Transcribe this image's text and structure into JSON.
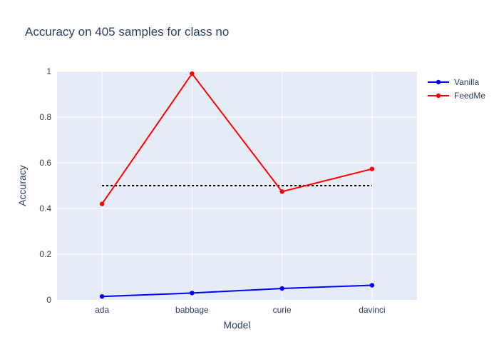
{
  "chart_data": {
    "type": "line",
    "title": "Accuracy on 405 samples for class  no",
    "xlabel": "Model",
    "ylabel": "Accuracy",
    "categories": [
      "ada",
      "babbage",
      "curie",
      "davinci"
    ],
    "ylim": [
      0,
      1
    ],
    "yticks": [
      0,
      0.2,
      0.4,
      0.6,
      0.8,
      1
    ],
    "ytick_labels": [
      "0",
      "0.2",
      "0.4",
      "0.6",
      "0.8",
      "1"
    ],
    "grid": true,
    "legend_position": "top-right",
    "series": [
      {
        "name": "Vanilla",
        "color": "#0000ff",
        "values": [
          0.015,
          0.03,
          0.05,
          0.064
        ]
      },
      {
        "name": "FeedMe",
        "color": "#ff0000",
        "values": [
          0.42,
          0.99,
          0.474,
          0.573
        ]
      }
    ],
    "reference_line": {
      "y": 0.5,
      "color": "#000000",
      "style": "dotted"
    },
    "colors": {
      "plot_background": "#e5ecf6",
      "grid": "#ffffff",
      "text": "#2a3f5f"
    }
  }
}
